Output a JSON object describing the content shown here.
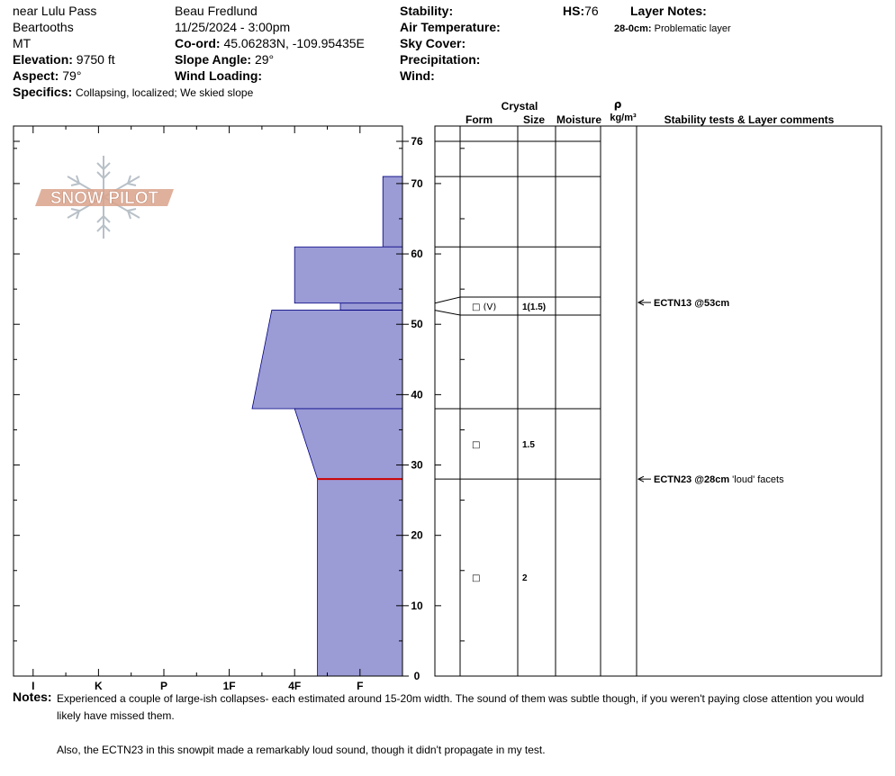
{
  "header": {
    "location": "near Lulu Pass",
    "range": "Beartooths",
    "state": "MT",
    "elevation_label": "Elevation:",
    "elevation_value": "9750 ft",
    "aspect_label": "Aspect:",
    "aspect_value": "79°",
    "specifics_label": "Specifics:",
    "specifics_value": "Collapsing, localized; We skied slope",
    "observer": "Beau  Fredlund",
    "datetime": "11/25/2024 - 3:00pm",
    "coord_label": "Co-ord:",
    "coord_value": "45.06283N, -109.95435E",
    "slope_label": "Slope Angle:",
    "slope_value": "29°",
    "wind_loading_label": "Wind Loading:",
    "stability_label": "Stability:",
    "air_temp_label": "Air Temperature:",
    "sky_label": "Sky Cover:",
    "precip_label": "Precipitation:",
    "wind_label": "Wind:",
    "hs_label": "HS:",
    "hs_value": "76",
    "layer_notes_label": "Layer Notes:",
    "layer_note_depth": "28-0cm:",
    "layer_note_text": "Problematic layer"
  },
  "logo": {
    "text": "SNOW PILOT"
  },
  "colors": {
    "hardness_fill": "#9b9bd6",
    "hardness_stroke": "#000080",
    "weak_layer": "#cc0000",
    "logo": "#d9a38c",
    "flake": "#b8c0c8"
  },
  "columns": {
    "crystal": "Crystal",
    "form": "Form",
    "size": "Size",
    "moisture": "Moisture",
    "rho": "ρ",
    "density_unit": "kg/m³",
    "stability": "Stability tests & Layer comments"
  },
  "chart_data": {
    "type": "snow-profile",
    "depth_axis": {
      "label": "",
      "ticks": [
        0,
        10,
        20,
        30,
        40,
        50,
        60,
        70,
        76
      ],
      "ylim": [
        0,
        76
      ]
    },
    "hardness_axis": {
      "ticks": [
        "I",
        "K",
        "P",
        "1F",
        "4F",
        "F"
      ],
      "scale": {
        "F": 1,
        "4F": 2,
        "1F": 3,
        "P": 4,
        "K": 5,
        "I": 6
      },
      "xlim": [
        0.35,
        6.3
      ]
    },
    "hardness_profile": [
      {
        "top": 76,
        "bottom": 71,
        "hardness_top": 0.35,
        "hardness_bottom": 0.35
      },
      {
        "top": 71,
        "bottom": 61,
        "hardness_top": 0.65,
        "hardness_bottom": 0.65
      },
      {
        "top": 61,
        "bottom": 53,
        "hardness_top": 2.0,
        "hardness_bottom": 2.0
      },
      {
        "top": 53,
        "bottom": 52,
        "hardness_top": 1.3,
        "hardness_bottom": 1.3
      },
      {
        "top": 52,
        "bottom": 38,
        "hardness_top": 2.35,
        "hardness_bottom": 2.65
      },
      {
        "top": 38,
        "bottom": 28,
        "hardness_top": 2.0,
        "hardness_bottom": 1.65
      },
      {
        "top": 28,
        "bottom": 0,
        "hardness_top": 1.65,
        "hardness_bottom": 1.65
      }
    ],
    "weak_layer_depth": 28,
    "layer_boundaries": [
      76,
      71,
      61,
      53,
      52,
      38,
      28,
      0
    ],
    "layers": [
      {
        "top": 53,
        "bottom": 52,
        "form": "□ (V)",
        "size": "1(1.5)"
      },
      {
        "top": 38,
        "bottom": 28,
        "form": "□",
        "size": "1.5"
      },
      {
        "top": 28,
        "bottom": 0,
        "form": "□",
        "size": "2"
      }
    ],
    "stability_tests": [
      {
        "depth": 53,
        "text": "ECTN13 @53cm",
        "comment": ""
      },
      {
        "depth": 28,
        "text": "ECTN23 @28cm",
        "comment": "'loud' facets"
      }
    ]
  },
  "notes": {
    "label": "Notes:",
    "paragraphs": [
      "Experienced a couple of large-ish collapses- each estimated around 15-20m width.  The sound of them was subtle though, if you weren't paying close attention you would likely have missed them.",
      "Also, the ECTN23 in this snowpit made a remarkably loud sound, though it didn't propagate in my test."
    ]
  }
}
